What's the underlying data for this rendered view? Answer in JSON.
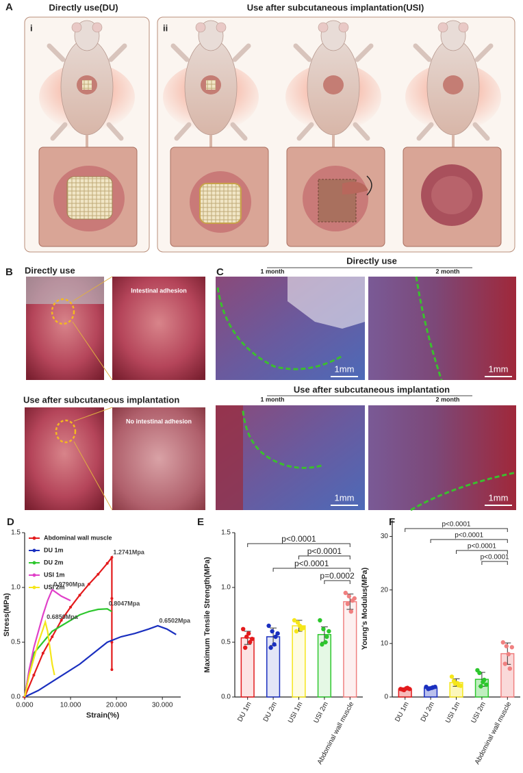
{
  "panels": {
    "A": {
      "label": "A",
      "left_title": "Directly use(DU)",
      "right_title": "Use after subcutaneous implantation(USI)",
      "left_index": "i",
      "right_index": "ii"
    },
    "B": {
      "label": "B",
      "top_title": "Directly use",
      "top_note": "Intestinal adhesion",
      "bottom_title": "Use after subcutaneous implantation",
      "bottom_note": "No intestinal adhesion"
    },
    "C": {
      "label": "C",
      "top_title": "Directly use",
      "top_months": [
        "1 month",
        "2 month"
      ],
      "bottom_title": "Use after subcutaneous implantation",
      "bottom_months": [
        "1 month",
        "2 month"
      ],
      "scale_bars": [
        "1mm",
        "1mm",
        "1mm",
        "1mm"
      ]
    },
    "D": {
      "label": "D"
    },
    "E": {
      "label": "E"
    },
    "F": {
      "label": "F"
    }
  },
  "chart_data": [
    {
      "type": "line",
      "x_label": "Strain(%)",
      "y_label": "Stress(MPa)",
      "xlim": [
        0,
        34
      ],
      "xticks": [
        {
          "value": 0,
          "label": "0.000"
        },
        {
          "value": 10,
          "label": "10.000"
        },
        {
          "value": 20,
          "label": "20.000"
        },
        {
          "value": 30,
          "label": "30.000"
        }
      ],
      "ylim": [
        0,
        1.5
      ],
      "yticks": [
        {
          "value": 0,
          "label": "0.0"
        },
        0.5,
        {
          "value": 1,
          "label": "1.0"
        },
        1.5
      ],
      "legend": "upper left",
      "series": [
        {
          "name": "Abdominal wall muscle",
          "color": "#e31a1c",
          "markers": true,
          "x": [
            0,
            2,
            4,
            6,
            8,
            10,
            12,
            14,
            16,
            18,
            19,
            19,
            19,
            19
          ],
          "values": [
            0,
            0.2,
            0.4,
            0.55,
            0.7,
            0.82,
            0.93,
            1.03,
            1.12,
            1.22,
            1.2741,
            0.9,
            0.5,
            0.25
          ],
          "value_labels": [
            null,
            null,
            null,
            null,
            null,
            null,
            null,
            null,
            null,
            null,
            "1.2741Mpa",
            null,
            null,
            null
          ]
        },
        {
          "name": "DU 1m",
          "color": "#1a2fbf",
          "markers": false,
          "x": [
            0,
            3,
            6,
            9,
            12,
            15,
            18,
            21,
            24,
            27,
            29,
            31,
            33
          ],
          "values": [
            0,
            0.06,
            0.14,
            0.22,
            0.3,
            0.4,
            0.5,
            0.55,
            0.58,
            0.62,
            0.6502,
            0.62,
            0.57
          ],
          "value_labels": [
            null,
            null,
            null,
            null,
            null,
            null,
            null,
            null,
            null,
            null,
            "0.6502Mpa",
            null,
            null
          ]
        },
        {
          "name": "DU 2m",
          "color": "#2dc72d",
          "markers": false,
          "x": [
            0,
            1,
            2,
            4,
            6,
            8,
            10,
            12,
            14,
            16,
            18,
            19
          ],
          "values": [
            0,
            0.25,
            0.4,
            0.5,
            0.6,
            0.65,
            0.7,
            0.75,
            0.78,
            0.8,
            0.8047,
            0.78
          ],
          "value_labels": [
            null,
            null,
            null,
            null,
            null,
            null,
            null,
            null,
            null,
            null,
            "0.8047Mpa",
            null
          ]
        },
        {
          "name": "USI 1m",
          "color": "#e040c8",
          "markers": false,
          "x": [
            0,
            1,
            2,
            3,
            4,
            5,
            6,
            8,
            10
          ],
          "values": [
            0,
            0.25,
            0.45,
            0.6,
            0.75,
            0.88,
            0.979,
            0.92,
            0.88
          ],
          "value_labels": [
            null,
            null,
            null,
            null,
            null,
            null,
            "0.9790Mpa",
            null,
            null
          ]
        },
        {
          "name": "USI 2m",
          "color": "#f5e61a",
          "markers": false,
          "x": [
            0,
            1,
            2,
            3,
            4,
            4.5,
            5,
            5.5,
            6,
            6.5
          ],
          "values": [
            0,
            0.2,
            0.35,
            0.5,
            0.62,
            0.685,
            0.6,
            0.45,
            0.3,
            0.2
          ],
          "value_labels": [
            null,
            null,
            null,
            null,
            null,
            "0.6850Mpa",
            null,
            null,
            null,
            null
          ]
        }
      ]
    },
    {
      "type": "bar",
      "y_label": "Maximum Tensile Strength(MPa)",
      "fill_opacity": 0.12,
      "categories": [
        "DU 1m",
        "DU 2m",
        "USI 1m",
        "USI 2m",
        "Abdominal wall muscle"
      ],
      "colors": [
        "#e31a1c",
        "#1a2fbf",
        "#f5e61a",
        "#2dc72d",
        "#f08080"
      ],
      "values": [
        0.54,
        0.55,
        0.65,
        0.57,
        0.87
      ],
      "errors": [
        0.06,
        0.08,
        0.05,
        0.07,
        0.07
      ],
      "points": [
        [
          0.62,
          0.55,
          0.5,
          0.45,
          0.58,
          0.53
        ],
        [
          0.65,
          0.6,
          0.55,
          0.45,
          0.48,
          0.58
        ],
        [
          0.7,
          0.68,
          0.62,
          0.6,
          0.65,
          0.63
        ],
        [
          0.7,
          0.62,
          0.55,
          0.48,
          0.5,
          0.6
        ],
        [
          0.95,
          0.92,
          0.88,
          0.85,
          0.78,
          0.9
        ]
      ],
      "ylim": [
        0,
        1.5
      ],
      "yticks": [
        {
          "value": 0,
          "label": "0.0"
        },
        0.5,
        {
          "value": 1,
          "label": "1.0"
        },
        1.5
      ],
      "comparisons": [
        {
          "pair": [
            0,
            4
          ],
          "label": "p<0.0001"
        },
        {
          "pair": [
            2,
            4
          ],
          "label": "p<0.0001"
        },
        {
          "pair": [
            1,
            4
          ],
          "label": "p<0.0001"
        },
        {
          "pair": [
            3,
            4
          ],
          "label": "p=0.0002"
        }
      ]
    },
    {
      "type": "bar",
      "y_label": "Young's Modulus(MPa)",
      "fill_opacity": 0.3,
      "categories": [
        "DU 1m",
        "DU 2m",
        "USI 1m",
        "USI 2m",
        "Abdominal wall muscle"
      ],
      "colors": [
        "#e31a1c",
        "#1a2fbf",
        "#f5e61a",
        "#2dc72d",
        "#f08080"
      ],
      "values": [
        1.5,
        1.7,
        2.7,
        3.3,
        8.1
      ],
      "errors": [
        0.2,
        0.2,
        0.7,
        1.3,
        2.0
      ],
      "points": [
        [
          1.5,
          1.3,
          1.7,
          1.4,
          1.6,
          1.5
        ],
        [
          1.9,
          1.6,
          1.8,
          1.5,
          1.7,
          1.9
        ],
        [
          3.8,
          2.5,
          2.2,
          3.0,
          2.6,
          2.1
        ],
        [
          5.0,
          2.0,
          3.2,
          4.5,
          2.8,
          2.3
        ],
        [
          10.2,
          9.5,
          5.3,
          6.2,
          8.0,
          9.3
        ]
      ],
      "ylim": [
        0,
        33
      ],
      "yticks": [
        0,
        10,
        20,
        30
      ],
      "comparisons": [
        {
          "pair": [
            0,
            4
          ],
          "label": "p<0.0001"
        },
        {
          "pair": [
            1,
            4
          ],
          "label": "p<0.0001"
        },
        {
          "pair": [
            2,
            4
          ],
          "label": "p<0.0001"
        },
        {
          "pair": [
            3,
            4
          ],
          "label": "p<0.0001"
        }
      ]
    }
  ]
}
